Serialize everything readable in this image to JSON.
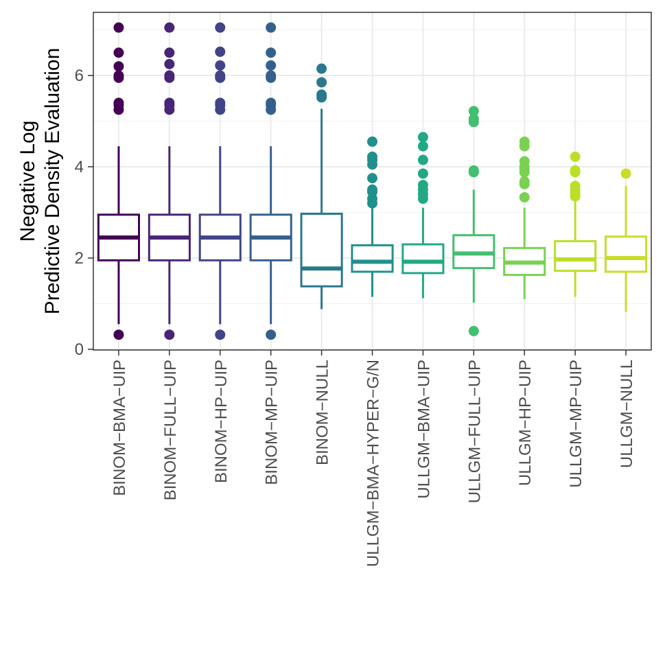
{
  "chart_data": {
    "type": "boxplot",
    "title": "",
    "xlabel": "",
    "ylabel_lines": [
      "Negative Log",
      "Predictive Density Evaluation"
    ],
    "ylim": [
      0,
      7.4
    ],
    "yticks": [
      0,
      2,
      4,
      6
    ],
    "grid": true,
    "legend": "none",
    "categories": [
      "BINOM−BMA−UIP",
      "BINOM−FULL−UIP",
      "BINOM−HP−UIP",
      "BINOM−MP−UIP",
      "BINOM−NULL",
      "ULLGM−BMA−HYPER−G/N",
      "ULLGM−BMA−UIP",
      "ULLGM−FULL−UIP",
      "ULLGM−HP−UIP",
      "ULLGM−MP−UIP",
      "ULLGM−NULL"
    ],
    "colors": [
      "#440154",
      "#482576",
      "#414487",
      "#35608D",
      "#2A788E",
      "#21908C",
      "#22A884",
      "#43BF71",
      "#7AD151",
      "#BBDF27",
      "#C8DD2A"
    ],
    "boxes": [
      {
        "min": 0.55,
        "q1": 1.95,
        "median": 2.45,
        "q3": 2.95,
        "max": 4.45,
        "outliers": [
          0.32,
          5.25,
          5.35,
          5.4,
          5.95,
          6.0,
          6.2,
          6.5,
          7.05
        ]
      },
      {
        "min": 0.55,
        "q1": 1.95,
        "median": 2.45,
        "q3": 2.95,
        "max": 4.45,
        "outliers": [
          0.32,
          5.25,
          5.35,
          5.4,
          5.95,
          6.0,
          6.25,
          6.5,
          7.05
        ]
      },
      {
        "min": 0.55,
        "q1": 1.95,
        "median": 2.45,
        "q3": 2.95,
        "max": 4.45,
        "outliers": [
          0.32,
          5.25,
          5.35,
          5.4,
          5.95,
          6.0,
          6.22,
          6.52,
          7.05
        ]
      },
      {
        "min": 0.55,
        "q1": 1.95,
        "median": 2.45,
        "q3": 2.95,
        "max": 4.45,
        "outliers": [
          0.32,
          5.25,
          5.35,
          5.4,
          5.95,
          6.0,
          6.22,
          6.5,
          7.05
        ]
      },
      {
        "min": 0.88,
        "q1": 1.38,
        "median": 1.77,
        "q3": 2.97,
        "max": 5.27,
        "outliers": [
          5.52,
          5.58,
          5.85,
          6.15
        ]
      },
      {
        "min": 1.15,
        "q1": 1.7,
        "median": 1.92,
        "q3": 2.28,
        "max": 3.1,
        "outliers": [
          3.2,
          3.3,
          3.45,
          3.5,
          3.75,
          4.05,
          4.15,
          4.22,
          4.55
        ]
      },
      {
        "min": 1.12,
        "q1": 1.67,
        "median": 1.92,
        "q3": 2.3,
        "max": 3.1,
        "outliers": [
          3.3,
          3.4,
          3.5,
          3.6,
          3.85,
          4.15,
          4.45,
          4.65
        ]
      },
      {
        "min": 1.02,
        "q1": 1.78,
        "median": 2.1,
        "q3": 2.5,
        "max": 3.5,
        "outliers": [
          0.4,
          3.88,
          3.92,
          4.98,
          5.05,
          5.22
        ]
      },
      {
        "min": 1.1,
        "q1": 1.63,
        "median": 1.9,
        "q3": 2.22,
        "max": 3.1,
        "outliers": [
          3.33,
          3.62,
          3.68,
          3.88,
          3.95,
          4.0,
          4.12,
          4.45,
          4.55
        ]
      },
      {
        "min": 1.15,
        "q1": 1.72,
        "median": 1.97,
        "q3": 2.37,
        "max": 3.3,
        "outliers": [
          3.35,
          3.42,
          3.5,
          3.58,
          3.88,
          3.92,
          4.22
        ]
      },
      {
        "min": 0.82,
        "q1": 1.7,
        "median": 2.0,
        "q3": 2.47,
        "max": 3.58,
        "outliers": [
          3.85
        ]
      }
    ]
  }
}
